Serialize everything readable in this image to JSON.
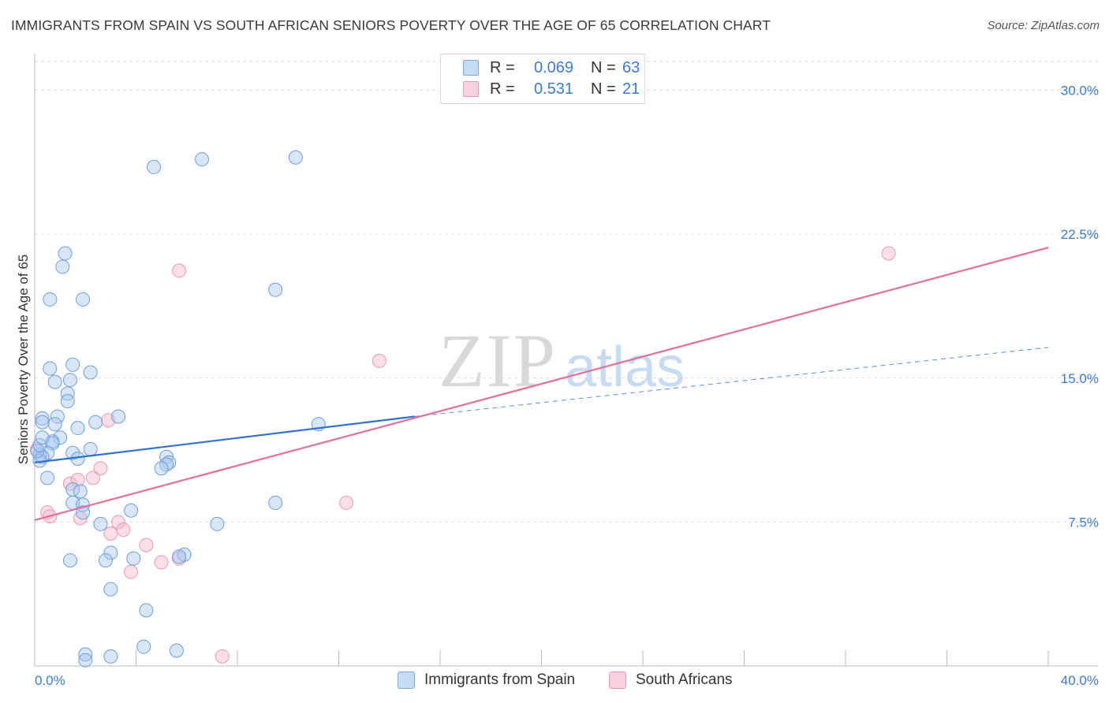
{
  "title": "IMMIGRANTS FROM SPAIN VS SOUTH AFRICAN SENIORS POVERTY OVER THE AGE OF 65 CORRELATION CHART",
  "source": "Source: ZipAtlas.com",
  "watermark": {
    "zip": "ZIP",
    "atlas": "atlas"
  },
  "legend_top": [
    {
      "r_label": "R =",
      "r_value": "0.069",
      "n_label": "N =",
      "n_value": "63",
      "color": "#a9c8ef"
    },
    {
      "r_label": "R =",
      "r_value": "0.531",
      "n_label": "N =",
      "n_value": "21",
      "color": "#f5b8cb"
    }
  ],
  "legend_bottom": [
    {
      "label": "Immigrants from Spain",
      "color": "#a9c8ef"
    },
    {
      "label": "South Africans",
      "color": "#f5b8cb"
    }
  ],
  "colors": {
    "blue_fill": "#a9c8ef",
    "blue_line": "#2f73d0",
    "pink_fill": "#f5b8cb",
    "pink_line": "#e0709a",
    "tick_text": "#3a7bd5"
  },
  "chart_data": {
    "type": "scatter",
    "title": "IMMIGRANTS FROM SPAIN VS SOUTH AFRICAN SENIORS POVERTY OVER THE AGE OF 65 CORRELATION CHART",
    "xlabel": "",
    "ylabel": "Seniors Poverty Over the Age of 65",
    "xlim": [
      0,
      40
    ],
    "ylim": [
      0,
      31.5
    ],
    "x_tick_labels": [
      "0.0%",
      "40.0%"
    ],
    "y_ticks": [
      7.5,
      15.0,
      22.5,
      30.0
    ],
    "y_tick_labels": [
      "7.5%",
      "15.0%",
      "22.5%",
      "30.0%"
    ],
    "grid": true,
    "legend": "top-center",
    "series": [
      {
        "name": "Immigrants from Spain",
        "x": [
          4.7,
          6.6,
          10.3,
          9.5,
          1.2,
          1.1,
          0.6,
          1.9,
          0.6,
          1.5,
          1.4,
          2.2,
          0.8,
          1.3,
          1.3,
          0.3,
          0.3,
          0.9,
          0.8,
          1.7,
          3.3,
          2.4,
          1.0,
          0.7,
          0.7,
          0.5,
          1.5,
          0.2,
          0.3,
          0.2,
          1.7,
          2.2,
          0.5,
          1.5,
          5.2,
          5.3,
          5.2,
          5.0,
          1.5,
          1.9,
          1.9,
          1.8,
          3.8,
          11.2,
          2.6,
          7.2,
          9.5,
          1.4,
          3.0,
          2.8,
          3.9,
          5.9,
          5.7,
          3.0,
          4.4,
          2.0,
          2.0,
          3.0,
          4.3,
          5.6,
          0.1,
          0.2,
          0.3
        ],
        "y": [
          26.0,
          26.4,
          26.5,
          19.6,
          21.5,
          20.8,
          19.1,
          19.1,
          15.5,
          15.7,
          14.9,
          15.3,
          14.8,
          14.2,
          13.8,
          12.9,
          12.7,
          13.0,
          12.6,
          12.4,
          13.0,
          12.7,
          11.9,
          11.7,
          11.6,
          11.1,
          11.1,
          11.0,
          10.9,
          10.7,
          10.8,
          11.3,
          9.8,
          9.2,
          10.9,
          10.6,
          10.5,
          10.3,
          8.5,
          8.4,
          8.0,
          9.1,
          8.1,
          12.6,
          7.4,
          7.4,
          8.5,
          5.5,
          5.9,
          5.5,
          5.6,
          5.8,
          5.7,
          4.0,
          2.9,
          0.6,
          0.3,
          0.5,
          1.0,
          0.8,
          11.2,
          11.5,
          11.9
        ],
        "trend": {
          "x": [
            0,
            15.0
          ],
          "y": [
            10.6,
            13.0
          ],
          "dashed_to": [
            40,
            16.6
          ]
        }
      },
      {
        "name": "South Africans",
        "x": [
          0.5,
          0.6,
          1.8,
          1.4,
          1.7,
          2.9,
          2.3,
          2.6,
          3.0,
          3.3,
          3.5,
          3.8,
          4.4,
          5.0,
          5.7,
          5.7,
          7.4,
          12.3,
          13.6,
          33.7,
          0.1
        ],
        "y": [
          8.0,
          7.8,
          7.7,
          9.5,
          9.7,
          12.8,
          9.8,
          10.3,
          6.9,
          7.5,
          7.1,
          4.9,
          6.3,
          5.4,
          20.6,
          5.6,
          0.5,
          8.5,
          15.9,
          21.5,
          11.3
        ],
        "trend": {
          "x": [
            0,
            40
          ],
          "y": [
            7.6,
            21.8
          ]
        }
      }
    ]
  }
}
